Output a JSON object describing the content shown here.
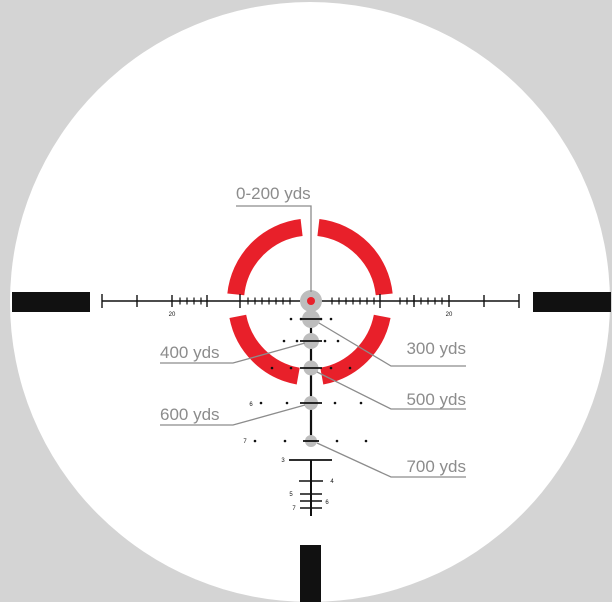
{
  "colors": {
    "background": "#d4d4d4",
    "field": "#ffffff",
    "reticle": "#111111",
    "ring": "#e8202a",
    "dot": "#e8202a",
    "callout": "#8c8c8c",
    "aim_circle": "#bdbdbd"
  },
  "callouts": {
    "zero": "0-200 yds",
    "y300": "300 yds",
    "y400": "400 yds",
    "y500": "500 yds",
    "y600": "600 yds",
    "y700": "700 yds"
  },
  "horizontal_labels": {
    "left": "20",
    "right": "20"
  },
  "windage_row_labels": {
    "row6": "6",
    "row7": "7"
  },
  "stadia_labels": {
    "s3": "3",
    "s4": "4",
    "s5": "5",
    "s6": "6",
    "s7": "7"
  }
}
